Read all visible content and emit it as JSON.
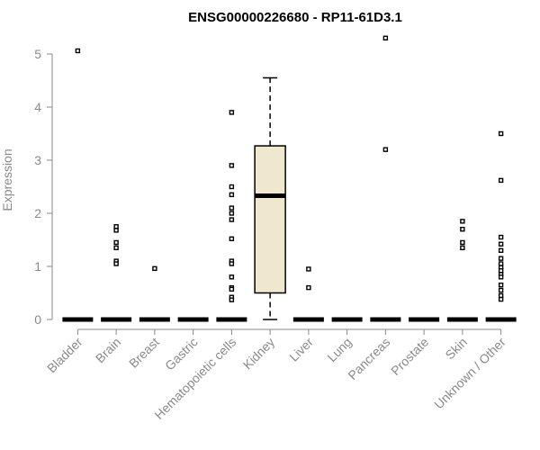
{
  "chart_data": {
    "type": "boxplot",
    "title": "ENSG00000226680 - RP11-61D3.1",
    "ylabel": "Expression",
    "ylim": [
      0,
      5.3
    ],
    "yticks": [
      0,
      1,
      2,
      3,
      4,
      5
    ],
    "categories": [
      "Bladder",
      "Brain",
      "Breast",
      "Gastric",
      "Hematopoietic cells",
      "Kidney",
      "Liver",
      "Lung",
      "Pancreas",
      "Prostate",
      "Skin",
      "Unknown / Other"
    ],
    "box_fill": "#efe8cf",
    "boxes": [
      {
        "category": "Bladder",
        "min": 0,
        "q1": 0,
        "median": 0,
        "q3": 0,
        "max": 0,
        "outliers": [
          5.06
        ]
      },
      {
        "category": "Brain",
        "min": 0,
        "q1": 0,
        "median": 0,
        "q3": 0,
        "max": 0,
        "outliers": [
          1.75,
          1.68,
          1.45,
          1.35,
          1.1,
          1.05
        ]
      },
      {
        "category": "Breast",
        "min": 0,
        "q1": 0,
        "median": 0,
        "q3": 0,
        "max": 0,
        "outliers": [
          0.96
        ]
      },
      {
        "category": "Gastric",
        "min": 0,
        "q1": 0,
        "median": 0,
        "q3": 0,
        "max": 0,
        "outliers": []
      },
      {
        "category": "Hematopoietic cells",
        "min": 0,
        "q1": 0,
        "median": 0,
        "q3": 0,
        "max": 0,
        "outliers": [
          3.9,
          2.9,
          2.5,
          2.35,
          2.1,
          2.0,
          1.88,
          1.52,
          1.1,
          1.05,
          0.8,
          0.6,
          0.57,
          0.42,
          0.37
        ]
      },
      {
        "category": "Kidney",
        "min": 0,
        "q1": 0.5,
        "median": 2.33,
        "q3": 3.27,
        "max": 4.55,
        "outliers": []
      },
      {
        "category": "Liver",
        "min": 0,
        "q1": 0,
        "median": 0,
        "q3": 0,
        "max": 0,
        "outliers": [
          0.95,
          0.6
        ]
      },
      {
        "category": "Lung",
        "min": 0,
        "q1": 0,
        "median": 0,
        "q3": 0,
        "max": 0,
        "outliers": []
      },
      {
        "category": "Pancreas",
        "min": 0,
        "q1": 0,
        "median": 0,
        "q3": 0,
        "max": 0,
        "outliers": [
          5.3,
          3.2
        ]
      },
      {
        "category": "Prostate",
        "min": 0,
        "q1": 0,
        "median": 0,
        "q3": 0,
        "max": 0,
        "outliers": []
      },
      {
        "category": "Skin",
        "min": 0,
        "q1": 0,
        "median": 0,
        "q3": 0,
        "max": 0,
        "outliers": [
          1.85,
          1.7,
          1.45,
          1.35
        ]
      },
      {
        "category": "Unknown / Other",
        "min": 0,
        "q1": 0,
        "median": 0,
        "q3": 0,
        "max": 0,
        "outliers": [
          3.5,
          2.62,
          1.55,
          1.42,
          1.3,
          1.15,
          1.05,
          0.98,
          0.92,
          0.85,
          0.8,
          0.65,
          0.55,
          0.45,
          0.38
        ]
      }
    ]
  }
}
